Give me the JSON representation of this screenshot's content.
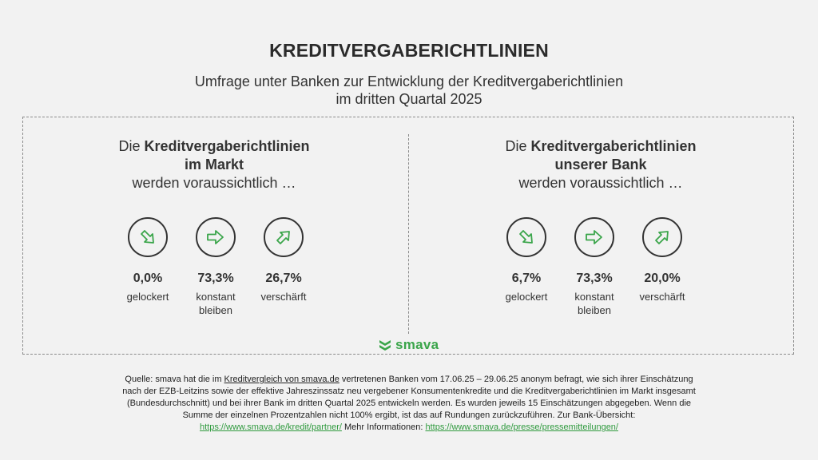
{
  "title": "KREDITVERGABERICHTLINIEN",
  "subtitle_line1": "Umfrage unter Banken zur Entwicklung der Kreditvergaberichtlinien",
  "subtitle_line2": "im dritten Quartal 2025",
  "colors": {
    "accent": "#3aa54a",
    "text": "#333333",
    "background": "#f2f2f2"
  },
  "panels": [
    {
      "intro": "Die",
      "bold1": "Kreditvergaberichtlinien",
      "bold2": "im Markt",
      "line3": "werden voraussichtlich …",
      "items": [
        {
          "icon": "arrow-down-right-icon",
          "value": "0,0%",
          "label1": "gelockert",
          "label2": ""
        },
        {
          "icon": "arrow-right-icon",
          "value": "73,3%",
          "label1": "konstant",
          "label2": "bleiben"
        },
        {
          "icon": "arrow-up-right-icon",
          "value": "26,7%",
          "label1": "verschärft",
          "label2": ""
        }
      ]
    },
    {
      "intro": "Die",
      "bold1": "Kreditvergaberichtlinien",
      "bold2": "unserer Bank",
      "line3": "werden voraussichtlich …",
      "items": [
        {
          "icon": "arrow-down-right-icon",
          "value": "6,7%",
          "label1": "gelockert",
          "label2": ""
        },
        {
          "icon": "arrow-right-icon",
          "value": "73,3%",
          "label1": "konstant",
          "label2": "bleiben"
        },
        {
          "icon": "arrow-up-right-icon",
          "value": "20,0%",
          "label1": "verschärft",
          "label2": ""
        }
      ]
    }
  ],
  "logo_text": "smava",
  "source": {
    "p1": "Quelle: smava hat die im ",
    "link1": "Kreditvergleich von smava.de",
    "p2": " vertretenen Banken vom 17.06.25 – 29.06.25 anonym befragt, wie sich ihrer Einschätzung nach der EZB-Leitzins sowie der effektive Jahreszinssatz neu vergebener Konsumentenkredite und die Kreditvergaberichtlinien im Markt insgesamt (Bundesdurchschnitt) und bei ihrer Bank im dritten Quartal 2025 entwickeln werden. Es wurden jeweils 15 Einschätzungen abgegeben. Wenn die Summe der einzelnen Prozentzahlen nicht 100% ergibt, ist das auf Rundungen zurückzuführen. Zur Bank-Übersicht: ",
    "link2": "https://www.smava.de/kredit/partner/",
    "p3": " Mehr Informationen: ",
    "link3": "https://www.smava.de/presse/pressemitteilungen/"
  }
}
